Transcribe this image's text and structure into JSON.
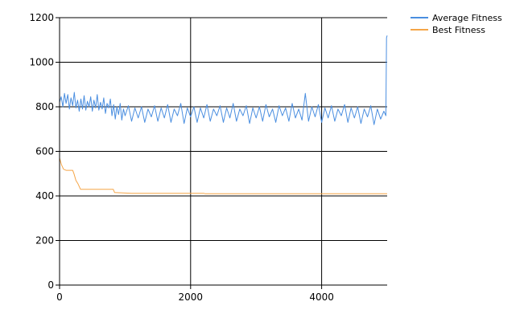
{
  "chart_data": {
    "type": "line",
    "title": "",
    "xlabel": "",
    "ylabel": "",
    "xlim": [
      0,
      5000
    ],
    "ylim": [
      0,
      1200
    ],
    "x_ticks": [
      0,
      2000,
      4000
    ],
    "y_ticks": [
      0,
      200,
      400,
      600,
      800,
      1000,
      1200
    ],
    "grid": true,
    "legend_position": "top-right",
    "series": [
      {
        "name": "Average Fitness",
        "color": "#4a8ee0",
        "points": [
          [
            0,
            820
          ],
          [
            25,
            845
          ],
          [
            50,
            800
          ],
          [
            75,
            860
          ],
          [
            100,
            815
          ],
          [
            125,
            855
          ],
          [
            150,
            790
          ],
          [
            175,
            840
          ],
          [
            200,
            805
          ],
          [
            225,
            865
          ],
          [
            250,
            795
          ],
          [
            275,
            830
          ],
          [
            300,
            780
          ],
          [
            325,
            835
          ],
          [
            350,
            790
          ],
          [
            375,
            850
          ],
          [
            400,
            785
          ],
          [
            425,
            825
          ],
          [
            450,
            800
          ],
          [
            475,
            845
          ],
          [
            500,
            780
          ],
          [
            525,
            830
          ],
          [
            550,
            795
          ],
          [
            575,
            855
          ],
          [
            600,
            785
          ],
          [
            625,
            820
          ],
          [
            650,
            790
          ],
          [
            675,
            840
          ],
          [
            700,
            770
          ],
          [
            725,
            815
          ],
          [
            750,
            795
          ],
          [
            775,
            835
          ],
          [
            800,
            760
          ],
          [
            825,
            810
          ],
          [
            850,
            745
          ],
          [
            875,
            800
          ],
          [
            900,
            765
          ],
          [
            925,
            815
          ],
          [
            950,
            740
          ],
          [
            975,
            790
          ],
          [
            1000,
            760
          ],
          [
            1050,
            805
          ],
          [
            1100,
            735
          ],
          [
            1150,
            795
          ],
          [
            1200,
            750
          ],
          [
            1250,
            800
          ],
          [
            1300,
            730
          ],
          [
            1350,
            790
          ],
          [
            1400,
            755
          ],
          [
            1450,
            805
          ],
          [
            1500,
            735
          ],
          [
            1550,
            795
          ],
          [
            1600,
            750
          ],
          [
            1650,
            810
          ],
          [
            1700,
            730
          ],
          [
            1750,
            790
          ],
          [
            1800,
            760
          ],
          [
            1850,
            815
          ],
          [
            1900,
            725
          ],
          [
            1950,
            795
          ],
          [
            2000,
            755
          ],
          [
            2050,
            800
          ],
          [
            2100,
            730
          ],
          [
            2150,
            795
          ],
          [
            2200,
            750
          ],
          [
            2250,
            810
          ],
          [
            2300,
            735
          ],
          [
            2350,
            790
          ],
          [
            2400,
            760
          ],
          [
            2450,
            805
          ],
          [
            2500,
            730
          ],
          [
            2550,
            795
          ],
          [
            2600,
            750
          ],
          [
            2650,
            815
          ],
          [
            2700,
            735
          ],
          [
            2750,
            790
          ],
          [
            2800,
            760
          ],
          [
            2850,
            805
          ],
          [
            2900,
            725
          ],
          [
            2950,
            795
          ],
          [
            3000,
            750
          ],
          [
            3050,
            800
          ],
          [
            3100,
            735
          ],
          [
            3150,
            810
          ],
          [
            3200,
            755
          ],
          [
            3250,
            790
          ],
          [
            3300,
            730
          ],
          [
            3350,
            805
          ],
          [
            3400,
            760
          ],
          [
            3450,
            795
          ],
          [
            3500,
            735
          ],
          [
            3550,
            815
          ],
          [
            3600,
            750
          ],
          [
            3650,
            790
          ],
          [
            3700,
            740
          ],
          [
            3750,
            860
          ],
          [
            3800,
            735
          ],
          [
            3850,
            800
          ],
          [
            3900,
            755
          ],
          [
            3950,
            810
          ],
          [
            4000,
            730
          ],
          [
            4050,
            795
          ],
          [
            4100,
            750
          ],
          [
            4150,
            805
          ],
          [
            4200,
            735
          ],
          [
            4250,
            790
          ],
          [
            4300,
            760
          ],
          [
            4350,
            810
          ],
          [
            4400,
            730
          ],
          [
            4450,
            795
          ],
          [
            4500,
            750
          ],
          [
            4550,
            800
          ],
          [
            4600,
            725
          ],
          [
            4650,
            790
          ],
          [
            4700,
            755
          ],
          [
            4750,
            805
          ],
          [
            4800,
            720
          ],
          [
            4850,
            790
          ],
          [
            4900,
            745
          ],
          [
            4950,
            780
          ],
          [
            4980,
            760
          ],
          [
            4990,
            1110
          ],
          [
            5000,
            1120
          ]
        ]
      },
      {
        "name": "Best Fitness",
        "color": "#f5a547",
        "points": [
          [
            0,
            570
          ],
          [
            30,
            540
          ],
          [
            60,
            520
          ],
          [
            100,
            515
          ],
          [
            200,
            515
          ],
          [
            220,
            500
          ],
          [
            250,
            470
          ],
          [
            280,
            455
          ],
          [
            320,
            430
          ],
          [
            600,
            430
          ],
          [
            820,
            430
          ],
          [
            840,
            415
          ],
          [
            1100,
            412
          ],
          [
            2200,
            412
          ],
          [
            2220,
            410
          ],
          [
            5000,
            410
          ]
        ]
      }
    ]
  }
}
